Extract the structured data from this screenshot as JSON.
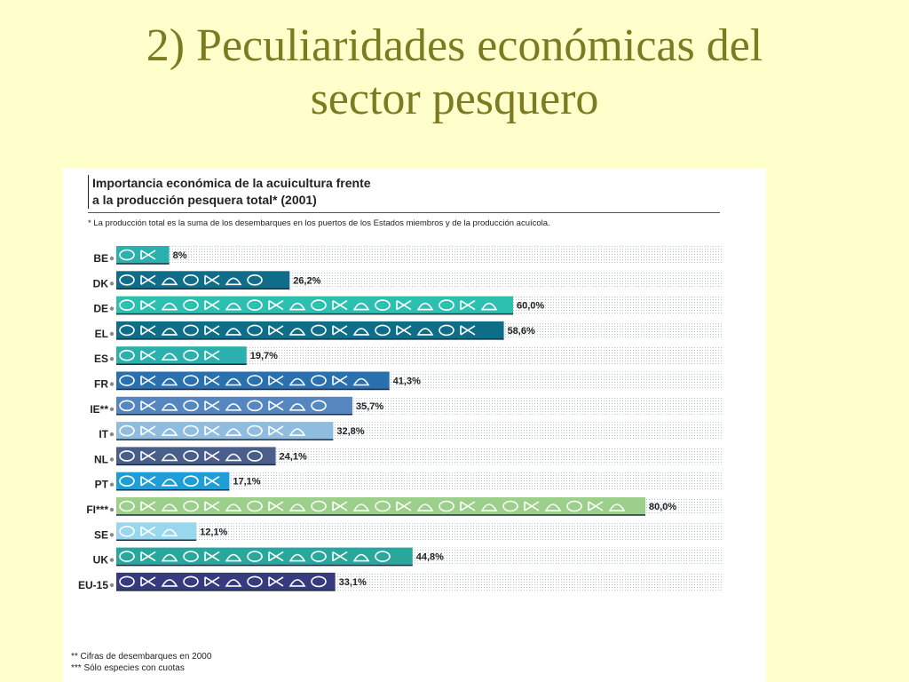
{
  "slide": {
    "title_line1": "2) Peculiaridades económicas del",
    "title_line2": "sector pesquero"
  },
  "chart_data": {
    "type": "bar",
    "title_line1": "Importancia económica de la acuicultura frente",
    "title_line2": "a la producción pesquera total* (2001)",
    "note_total": "* La producción total es la suma de los desembarques en los puertos de los Estados miembros y de la producción acuícola.",
    "categories": [
      "BE",
      "DK",
      "DE",
      "EL",
      "ES",
      "FR",
      "IE**",
      "IT",
      "NL",
      "PT",
      "FI***",
      "SE",
      "UK",
      "EU-15"
    ],
    "values": [
      8,
      26.2,
      60.0,
      58.6,
      19.7,
      41.3,
      35.7,
      32.8,
      24.1,
      17.1,
      80.0,
      12.1,
      44.8,
      33.1
    ],
    "value_labels": [
      "8%",
      "26,2%",
      "60,0%",
      "58,6%",
      "19,7%",
      "41,3%",
      "35,7%",
      "32,8%",
      "24,1%",
      "17,1%",
      "80,0%",
      "12,1%",
      "44,8%",
      "33,1%"
    ],
    "bar_colors": [
      "#2cb0ad",
      "#0f6d8a",
      "#2dbfb0",
      "#0f6d8a",
      "#2cb0ad",
      "#2a6fae",
      "#5586bf",
      "#8fbddf",
      "#4a5e8c",
      "#1e9ed8",
      "#9ccf8a",
      "#98d7ee",
      "#2aa79d",
      "#363a7e"
    ],
    "xlim": [
      0,
      100
    ],
    "grid": "dotted background",
    "footnote_1": "** Cifras de desembarques en 2000",
    "footnote_2": "*** Sólo especies con cuotas"
  }
}
